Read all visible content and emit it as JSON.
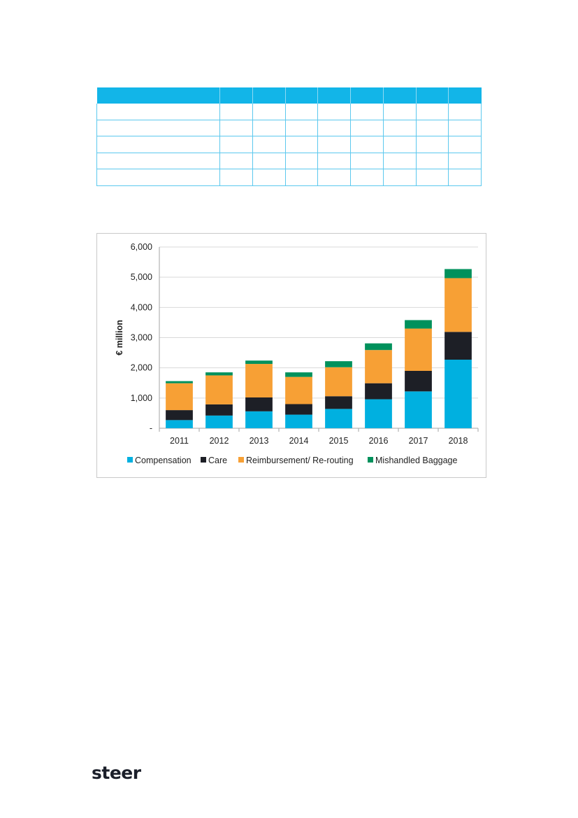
{
  "logo": {
    "text": "steer"
  },
  "table": {
    "columns": 9,
    "body_rows": 5
  },
  "chart_data": {
    "type": "bar",
    "stacked": true,
    "categories": [
      "2011",
      "2012",
      "2013",
      "2014",
      "2015",
      "2016",
      "2017",
      "2018"
    ],
    "series": [
      {
        "name": "Compensation",
        "color": "#00b0e0",
        "values": [
          270,
          420,
          560,
          450,
          640,
          960,
          1220,
          2270
        ]
      },
      {
        "name": "Care",
        "color": "#1d1f26",
        "values": [
          330,
          370,
          460,
          350,
          420,
          530,
          680,
          920
        ]
      },
      {
        "name": "Reimbursement/ Re-routing",
        "color": "#f7a035",
        "values": [
          890,
          960,
          1110,
          900,
          960,
          1100,
          1400,
          1780
        ]
      },
      {
        "name": "Mishandled Baggage",
        "color": "#00915c",
        "values": [
          70,
          100,
          110,
          150,
          200,
          220,
          280,
          300
        ]
      }
    ],
    "ylabel": "€ million",
    "xlabel": "",
    "ylim": [
      0,
      6000
    ],
    "y_ticks": [
      0,
      1000,
      2000,
      3000,
      4000,
      5000,
      6000
    ],
    "y_tick_labels": [
      "-",
      "1,000",
      "2,000",
      "3,000",
      "4,000",
      "5,000",
      "6,000"
    ],
    "grid": true,
    "legend_position": "bottom"
  }
}
